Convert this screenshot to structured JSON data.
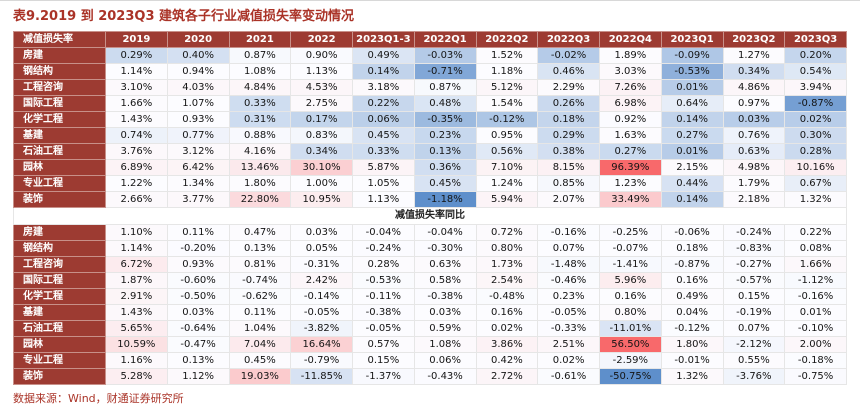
{
  "title": "表9.2019 到 2023Q3 建筑各子行业减值损失率变动情况",
  "source": "数据来源：Wind，财通证券研究所",
  "colors": {
    "title_color": "#AA3327",
    "header_bg": "#9D3B32",
    "header_text": "#FFFFFF",
    "heat_low": "#5E8FCB",
    "heat_mid": "#FCFCFF",
    "heat_high": "#F8696B"
  },
  "table": {
    "columns": [
      "减值损失率",
      "2019",
      "2020",
      "2021",
      "2022",
      "2023Q1-3",
      "2022Q1",
      "2022Q2",
      "2022Q3",
      "2022Q4",
      "2023Q1",
      "2023Q2",
      "2023Q3"
    ],
    "sections": [
      {
        "name": "减值损失率",
        "rows": [
          {
            "label": "房建",
            "values": [
              0.29,
              0.4,
              0.87,
              0.9,
              0.49,
              -0.03,
              1.52,
              -0.02,
              1.89,
              -0.09,
              1.27,
              0.2
            ]
          },
          {
            "label": "钢结构",
            "values": [
              1.14,
              0.94,
              1.08,
              1.13,
              0.14,
              -0.71,
              1.18,
              0.46,
              3.03,
              -0.53,
              0.34,
              0.54
            ]
          },
          {
            "label": "工程咨询",
            "values": [
              3.1,
              4.03,
              4.84,
              4.53,
              3.18,
              0.87,
              5.12,
              2.29,
              7.26,
              0.01,
              4.86,
              3.94
            ]
          },
          {
            "label": "国际工程",
            "values": [
              1.66,
              1.07,
              0.33,
              2.75,
              0.22,
              0.48,
              1.54,
              0.26,
              6.98,
              0.64,
              0.97,
              -0.87
            ]
          },
          {
            "label": "化学工程",
            "values": [
              1.43,
              0.93,
              0.31,
              0.17,
              0.06,
              -0.35,
              -0.12,
              0.18,
              0.92,
              0.14,
              0.03,
              0.02
            ]
          },
          {
            "label": "基建",
            "values": [
              0.74,
              0.77,
              0.88,
              0.83,
              0.45,
              0.23,
              0.95,
              0.29,
              1.63,
              0.27,
              0.76,
              0.3
            ]
          },
          {
            "label": "石油工程",
            "values": [
              3.76,
              3.12,
              4.16,
              0.34,
              0.33,
              0.13,
              0.56,
              0.38,
              0.27,
              0.01,
              0.63,
              0.28
            ]
          },
          {
            "label": "园林",
            "values": [
              6.89,
              6.42,
              13.46,
              30.1,
              5.87,
              0.36,
              7.1,
              8.15,
              96.39,
              2.15,
              4.98,
              10.16
            ]
          },
          {
            "label": "专业工程",
            "values": [
              1.22,
              1.34,
              1.8,
              1.0,
              1.05,
              0.45,
              1.24,
              0.85,
              1.23,
              0.44,
              1.79,
              0.67
            ]
          },
          {
            "label": "装饰",
            "values": [
              2.66,
              3.77,
              22.8,
              10.95,
              1.13,
              -1.18,
              5.94,
              2.07,
              33.49,
              0.14,
              2.18,
              1.32
            ]
          }
        ]
      },
      {
        "name": "减值损失率同比",
        "rows": [
          {
            "label": "房建",
            "values": [
              1.1,
              0.11,
              0.47,
              0.03,
              -0.04,
              -0.04,
              0.72,
              -0.16,
              -0.25,
              -0.06,
              -0.24,
              0.22
            ]
          },
          {
            "label": "钢结构",
            "values": [
              1.14,
              -0.2,
              0.13,
              0.05,
              -0.24,
              -0.3,
              0.8,
              0.07,
              -0.07,
              0.18,
              -0.83,
              0.08
            ]
          },
          {
            "label": "工程咨询",
            "values": [
              6.72,
              0.93,
              0.81,
              -0.31,
              0.28,
              0.63,
              1.73,
              -1.48,
              -1.41,
              -0.87,
              -0.27,
              1.66
            ]
          },
          {
            "label": "国际工程",
            "values": [
              1.87,
              -0.6,
              -0.74,
              2.42,
              -0.53,
              0.58,
              2.54,
              -0.46,
              5.96,
              0.16,
              -0.57,
              -1.12
            ]
          },
          {
            "label": "化学工程",
            "values": [
              2.91,
              -0.5,
              -0.62,
              -0.14,
              -0.11,
              -0.38,
              -0.48,
              0.23,
              0.16,
              0.49,
              0.15,
              -0.16
            ]
          },
          {
            "label": "基建",
            "values": [
              1.43,
              0.03,
              0.11,
              -0.05,
              -0.38,
              0.03,
              0.16,
              -0.05,
              0.8,
              0.04,
              -0.19,
              0.01
            ]
          },
          {
            "label": "石油工程",
            "values": [
              5.65,
              -0.64,
              1.04,
              -3.82,
              -0.05,
              0.59,
              0.02,
              -0.33,
              -11.01,
              -0.12,
              0.07,
              -0.1
            ]
          },
          {
            "label": "园林",
            "values": [
              10.59,
              -0.47,
              7.04,
              16.64,
              0.57,
              1.08,
              3.86,
              2.51,
              56.5,
              1.8,
              -2.12,
              2.0
            ]
          },
          {
            "label": "专业工程",
            "values": [
              1.16,
              0.13,
              0.45,
              -0.79,
              0.15,
              0.06,
              0.42,
              0.02,
              -2.59,
              -0.01,
              0.55,
              -0.18
            ]
          },
          {
            "label": "装饰",
            "values": [
              5.28,
              1.12,
              19.03,
              -11.85,
              -1.37,
              -0.43,
              2.72,
              -0.61,
              -50.75,
              1.32,
              -3.76,
              -0.75
            ]
          }
        ]
      }
    ]
  }
}
